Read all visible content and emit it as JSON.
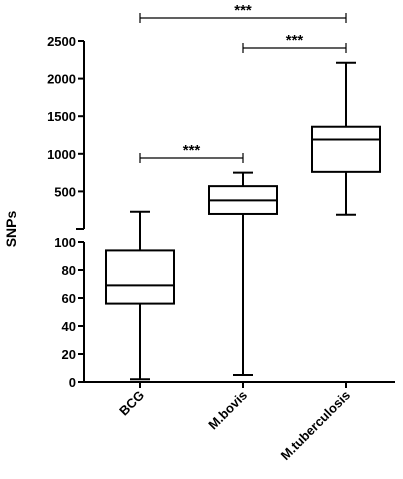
{
  "chart_data": {
    "type": "box",
    "ylabel": "SNPs",
    "y_axis_break": true,
    "lower_segment_ylim": [
      0,
      100
    ],
    "upper_segment_ylim": [
      100,
      2500
    ],
    "lower_ticks": [
      "0",
      "20",
      "40",
      "60",
      "80",
      "100"
    ],
    "upper_ticks": [
      "500",
      "1000",
      "1500",
      "2000",
      "2500"
    ],
    "categories": [
      "BCG",
      "M.bovis",
      "M.tuberculosis"
    ],
    "boxes": [
      {
        "category": "BCG",
        "min": 2,
        "q1": 56,
        "median": 69,
        "q3": 94,
        "max": 230
      },
      {
        "category": "M.bovis",
        "min": 5,
        "q1": 200,
        "median": 380,
        "q3": 570,
        "max": 750
      },
      {
        "category": "M.tuberculosis",
        "min": 190,
        "q1": 760,
        "median": 1190,
        "q3": 1360,
        "max": 2210
      }
    ],
    "significance": [
      {
        "from": "BCG",
        "to": "M.tuberculosis",
        "label": "***"
      },
      {
        "from": "M.bovis",
        "to": "M.tuberculosis",
        "label": "***"
      },
      {
        "from": "BCG",
        "to": "M.bovis",
        "label": "***"
      }
    ]
  }
}
